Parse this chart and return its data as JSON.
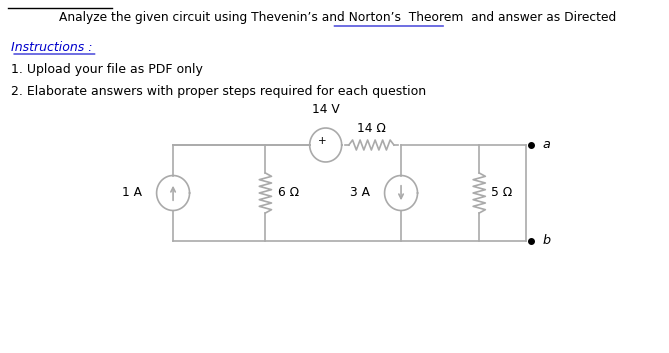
{
  "title": "Analyze the given circuit using Thevenin’s and Norton’s  Theorem  and answer as Directed",
  "instructions_header": "Instructions :",
  "instructions": [
    "1. Upload your file as PDF only",
    "2. Elaborate answers with proper steps required for each question"
  ],
  "bg_color": "#ffffff",
  "circuit_color": "#aaaaaa",
  "text_color": "#000000",
  "blue_color": "#0000cc",
  "voltage_source_label": "14 V",
  "resistor1_label": "14 Ω",
  "resistor2_label": "6 Ω",
  "resistor3_label": "5 Ω",
  "current_source1_label": "1 A",
  "current_source2_label": "3 A",
  "terminal_a_label": "a",
  "terminal_b_label": "b"
}
